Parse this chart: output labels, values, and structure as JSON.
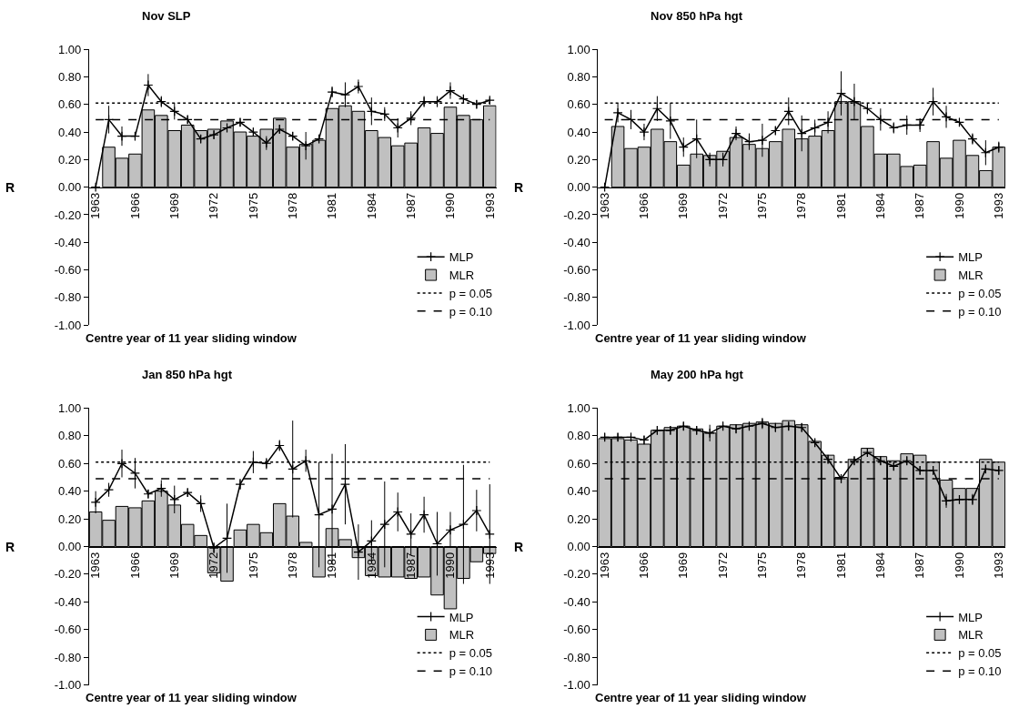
{
  "chart_data": [
    {
      "type": "bar",
      "title": "Nov SLP",
      "xlabel": "Centre year of 11 year sliding window",
      "ylabel": "R",
      "legend": "bottom right",
      "grid": false,
      "marker": "cross",
      "categories": [
        "1963",
        null,
        null,
        "1966",
        null,
        null,
        "1969",
        null,
        null,
        "1972",
        null,
        null,
        "1975",
        null,
        null,
        "1978",
        null,
        null,
        "1981",
        null,
        null,
        "1984",
        null,
        null,
        "1987",
        null,
        null,
        "1990",
        null,
        null,
        "1993"
      ],
      "series": [
        {
          "name": "MLP",
          "type": "line",
          "color": "#000000",
          "line_style": "solid",
          "values": [
            0,
            0.49,
            0.37,
            0.37,
            0.74,
            0.62,
            0.55,
            0.49,
            0.35,
            0.38,
            0.43,
            0.47,
            0.4,
            0.32,
            0.42,
            0.37,
            0.3,
            0.35,
            0.69,
            0.67,
            0.73,
            0.55,
            0.53,
            0.43,
            0.5,
            0.62,
            0.62,
            0.7,
            0.64,
            0.6,
            0.63
          ],
          "errors": [
            null,
            0.1,
            0.07,
            0.03,
            0.08,
            0.04,
            0.06,
            0.03,
            0.03,
            0.03,
            0.03,
            0.03,
            0.03,
            0.05,
            0.03,
            0.03,
            0.1,
            0.03,
            0.04,
            0.09,
            0.05,
            0.1,
            0.05,
            0.07,
            0.05,
            0.04,
            0.04,
            0.06,
            0.03,
            0.03,
            0.02
          ]
        },
        {
          "name": "MLR",
          "color": "#c0c0c0",
          "values": [
            null,
            0.29,
            0.21,
            0.24,
            0.56,
            0.52,
            0.41,
            0.45,
            0.41,
            0.42,
            0.48,
            0.4,
            0.37,
            0.42,
            0.5,
            0.29,
            0.31,
            0.34,
            0.57,
            0.59,
            0.55,
            0.41,
            0.36,
            0.3,
            0.32,
            0.43,
            0.39,
            0.58,
            0.52,
            0.49,
            0.59
          ]
        },
        {
          "name": "p = 0.05",
          "type": "line",
          "color": "#000000",
          "line_style": "dotted",
          "marker": "none",
          "values": [
            0.61,
            0.61,
            0.61,
            0.61,
            0.61,
            0.61,
            0.61,
            0.61,
            0.61,
            0.61,
            0.61,
            0.61,
            0.61,
            0.61,
            0.61,
            0.61,
            0.61,
            0.61,
            0.61,
            0.61,
            0.61,
            0.61,
            0.61,
            0.61,
            0.61,
            0.61,
            0.61,
            0.61,
            0.61,
            0.61,
            0.61
          ]
        },
        {
          "name": "p = 0.10",
          "type": "line",
          "color": "#000000",
          "line_style": "dashed",
          "marker": "none",
          "values": [
            0.49,
            0.49,
            0.49,
            0.49,
            0.49,
            0.49,
            0.49,
            0.49,
            0.49,
            0.49,
            0.49,
            0.49,
            0.49,
            0.49,
            0.49,
            0.49,
            0.49,
            0.49,
            0.49,
            0.49,
            0.49,
            0.49,
            0.49,
            0.49,
            0.49,
            0.49,
            0.49,
            0.49,
            0.49,
            0.49,
            0.49
          ]
        }
      ],
      "ylim": [
        -1,
        1
      ],
      "yticks": [
        {
          "value": -1,
          "label": "-1.00"
        },
        {
          "value": -0.8,
          "label": "-0.80"
        },
        {
          "value": -0.6,
          "label": "-0.60"
        },
        {
          "value": -0.4,
          "label": "-0.40"
        },
        {
          "value": -0.2,
          "label": "-0.20"
        },
        {
          "value": 0,
          "label": "0.00"
        },
        {
          "value": 0.2,
          "label": "0.20"
        },
        {
          "value": 0.4,
          "label": "0.40"
        },
        {
          "value": 0.6,
          "label": "0.60"
        },
        {
          "value": 0.8,
          "label": "0.80"
        },
        {
          "value": 1,
          "label": "1.00"
        }
      ]
    },
    {
      "type": "bar",
      "title": "Nov 850 hPa hgt",
      "xlabel": "Centre year of 11 year sliding window",
      "ylabel": "R",
      "legend": "bottom right",
      "grid": false,
      "marker": "cross",
      "categories": [
        "1963",
        null,
        null,
        "1966",
        null,
        null,
        "1969",
        null,
        null,
        "1972",
        null,
        null,
        "1975",
        null,
        null,
        "1978",
        null,
        null,
        "1981",
        null,
        null,
        "1984",
        null,
        null,
        "1987",
        null,
        null,
        "1990",
        null,
        null,
        "1993"
      ],
      "series": [
        {
          "name": "MLP",
          "type": "line",
          "color": "#000000",
          "line_style": "solid",
          "values": [
            0,
            0.54,
            0.49,
            0.4,
            0.57,
            0.48,
            0.29,
            0.35,
            0.2,
            0.2,
            0.39,
            0.33,
            0.34,
            0.41,
            0.55,
            0.39,
            0.43,
            0.47,
            0.68,
            0.62,
            0.57,
            0.49,
            0.43,
            0.45,
            0.45,
            0.62,
            0.51,
            0.47,
            0.35,
            0.25,
            0.29
          ],
          "errors": [
            null,
            0.07,
            0.07,
            0.06,
            0.09,
            0.13,
            0.07,
            0.14,
            0.05,
            0.05,
            0.05,
            0.06,
            0.12,
            0.03,
            0.1,
            0.13,
            0.06,
            0.08,
            0.16,
            0.13,
            0.04,
            0.08,
            0.04,
            0.07,
            0.05,
            0.1,
            0.08,
            0.03,
            0.04,
            0.09,
            0.04
          ]
        },
        {
          "name": "MLR",
          "color": "#c0c0c0",
          "values": [
            null,
            0.44,
            0.28,
            0.29,
            0.42,
            0.33,
            0.16,
            0.24,
            0.23,
            0.26,
            0.36,
            0.31,
            0.28,
            0.33,
            0.42,
            0.35,
            0.37,
            0.41,
            0.62,
            0.62,
            0.44,
            0.24,
            0.24,
            0.15,
            0.16,
            0.33,
            0.21,
            0.34,
            0.23,
            0.12,
            0.29
          ]
        },
        {
          "name": "p = 0.05",
          "type": "line",
          "color": "#000000",
          "line_style": "dotted",
          "marker": "none",
          "values": [
            0.61,
            0.61,
            0.61,
            0.61,
            0.61,
            0.61,
            0.61,
            0.61,
            0.61,
            0.61,
            0.61,
            0.61,
            0.61,
            0.61,
            0.61,
            0.61,
            0.61,
            0.61,
            0.61,
            0.61,
            0.61,
            0.61,
            0.61,
            0.61,
            0.61,
            0.61,
            0.61,
            0.61,
            0.61,
            0.61,
            0.61
          ]
        },
        {
          "name": "p = 0.10",
          "type": "line",
          "color": "#000000",
          "line_style": "dashed",
          "marker": "none",
          "values": [
            0.49,
            0.49,
            0.49,
            0.49,
            0.49,
            0.49,
            0.49,
            0.49,
            0.49,
            0.49,
            0.49,
            0.49,
            0.49,
            0.49,
            0.49,
            0.49,
            0.49,
            0.49,
            0.49,
            0.49,
            0.49,
            0.49,
            0.49,
            0.49,
            0.49,
            0.49,
            0.49,
            0.49,
            0.49,
            0.49,
            0.49
          ]
        }
      ],
      "ylim": [
        -1,
        1
      ],
      "yticks": [
        {
          "value": -1,
          "label": "-1.00"
        },
        {
          "value": -0.8,
          "label": "-0.80"
        },
        {
          "value": -0.6,
          "label": "-0.60"
        },
        {
          "value": -0.4,
          "label": "-0.40"
        },
        {
          "value": -0.2,
          "label": "-0.20"
        },
        {
          "value": 0,
          "label": "0.00"
        },
        {
          "value": 0.2,
          "label": "0.20"
        },
        {
          "value": 0.4,
          "label": "0.40"
        },
        {
          "value": 0.6,
          "label": "0.60"
        },
        {
          "value": 0.8,
          "label": "0.80"
        },
        {
          "value": 1,
          "label": "1.00"
        }
      ]
    },
    {
      "type": "bar",
      "title": "Jan 850 hPa hgt",
      "xlabel": "Centre year of 11 year sliding window",
      "ylabel": "R",
      "legend": "bottom right",
      "grid": false,
      "marker": "cross",
      "categories": [
        "1963",
        null,
        null,
        "1966",
        null,
        null,
        "1969",
        null,
        null,
        "1972",
        null,
        null,
        "1975",
        null,
        null,
        "1978",
        null,
        null,
        "1981",
        null,
        null,
        "1984",
        null,
        null,
        "1987",
        null,
        null,
        "1990",
        null,
        null,
        "1993"
      ],
      "series": [
        {
          "name": "MLP",
          "type": "line",
          "color": "#000000",
          "line_style": "solid",
          "values": [
            0.32,
            0.41,
            0.6,
            0.53,
            0.38,
            0.42,
            0.34,
            0.39,
            0.31,
            -0.01,
            0.06,
            0.45,
            0.61,
            0.6,
            0.73,
            0.56,
            0.62,
            0.23,
            0.27,
            0.45,
            -0.04,
            0.04,
            0.16,
            0.25,
            0.09,
            0.23,
            0.02,
            0.12,
            0.16,
            0.26,
            0.09
          ],
          "errors": [
            0.08,
            0.05,
            0.1,
            0.11,
            0.03,
            0.06,
            0.1,
            0.03,
            0.06,
            0.04,
            0.25,
            0.04,
            0.08,
            0.04,
            0.04,
            0.35,
            0.08,
            0.38,
            0.4,
            0.29,
            0.2,
            0.15,
            0.31,
            0.14,
            0.15,
            0.13,
            0.23,
            0.13,
            0.43,
            0.15,
            0.36
          ]
        },
        {
          "name": "MLR",
          "color": "#c0c0c0",
          "values": [
            0.25,
            0.19,
            0.29,
            0.28,
            0.33,
            0.4,
            0.3,
            0.16,
            0.08,
            -0.19,
            -0.25,
            0.12,
            0.16,
            0.1,
            0.31,
            0.22,
            0.03,
            -0.22,
            0.13,
            0.05,
            -0.08,
            -0.21,
            -0.22,
            -0.22,
            -0.23,
            -0.22,
            -0.35,
            -0.45,
            -0.23,
            -0.11,
            -0.05
          ]
        },
        {
          "name": "p = 0.05",
          "type": "line",
          "color": "#000000",
          "line_style": "dotted",
          "marker": "none",
          "values": [
            0.61,
            0.61,
            0.61,
            0.61,
            0.61,
            0.61,
            0.61,
            0.61,
            0.61,
            0.61,
            0.61,
            0.61,
            0.61,
            0.61,
            0.61,
            0.61,
            0.61,
            0.61,
            0.61,
            0.61,
            0.61,
            0.61,
            0.61,
            0.61,
            0.61,
            0.61,
            0.61,
            0.61,
            0.61,
            0.61,
            0.61
          ]
        },
        {
          "name": "p = 0.10",
          "type": "line",
          "color": "#000000",
          "line_style": "dashed",
          "marker": "none",
          "values": [
            0.49,
            0.49,
            0.49,
            0.49,
            0.49,
            0.49,
            0.49,
            0.49,
            0.49,
            0.49,
            0.49,
            0.49,
            0.49,
            0.49,
            0.49,
            0.49,
            0.49,
            0.49,
            0.49,
            0.49,
            0.49,
            0.49,
            0.49,
            0.49,
            0.49,
            0.49,
            0.49,
            0.49,
            0.49,
            0.49,
            0.49
          ]
        }
      ],
      "ylim": [
        -1,
        1
      ],
      "yticks": [
        {
          "value": -1,
          "label": "-1.00"
        },
        {
          "value": -0.8,
          "label": "-0.80"
        },
        {
          "value": -0.6,
          "label": "-0.60"
        },
        {
          "value": -0.4,
          "label": "-0.40"
        },
        {
          "value": -0.2,
          "label": "-0.20"
        },
        {
          "value": 0,
          "label": "0.00"
        },
        {
          "value": 0.2,
          "label": "0.20"
        },
        {
          "value": 0.4,
          "label": "0.40"
        },
        {
          "value": 0.6,
          "label": "0.60"
        },
        {
          "value": 0.8,
          "label": "0.80"
        },
        {
          "value": 1,
          "label": "1.00"
        }
      ]
    },
    {
      "type": "bar",
      "title": "May 200 hPa hgt",
      "xlabel": "Centre year of 11 year sliding window",
      "ylabel": "R",
      "legend": "bottom right",
      "grid": false,
      "marker": "cross",
      "categories": [
        "1963",
        null,
        null,
        "1966",
        null,
        null,
        "1969",
        null,
        null,
        "1972",
        null,
        null,
        "1975",
        null,
        null,
        "1978",
        null,
        null,
        "1981",
        null,
        null,
        "1984",
        null,
        null,
        "1987",
        null,
        null,
        "1990",
        null,
        null,
        "1993"
      ],
      "series": [
        {
          "name": "MLP",
          "type": "line",
          "color": "#000000",
          "line_style": "solid",
          "values": [
            0.79,
            0.79,
            0.79,
            0.77,
            0.84,
            0.84,
            0.87,
            0.84,
            0.82,
            0.87,
            0.85,
            0.87,
            0.89,
            0.86,
            0.87,
            0.86,
            0.75,
            0.63,
            0.49,
            0.62,
            0.68,
            0.62,
            0.58,
            0.62,
            0.55,
            0.55,
            0.33,
            0.34,
            0.34,
            0.56,
            0.55
          ],
          "errors": [
            0.03,
            0.03,
            0.03,
            0.03,
            0.03,
            0.03,
            0.03,
            0.03,
            0.06,
            0.03,
            0.03,
            0.03,
            0.04,
            0.03,
            0.03,
            0.03,
            0.03,
            0.03,
            0.03,
            0.03,
            0.03,
            0.03,
            0.03,
            0.03,
            0.03,
            0.03,
            0.05,
            0.03,
            0.04,
            0.03,
            0.03
          ]
        },
        {
          "name": "MLR",
          "color": "#c0c0c0",
          "values": [
            0.78,
            0.78,
            0.77,
            0.74,
            0.84,
            0.86,
            0.87,
            0.85,
            0.82,
            0.87,
            0.88,
            0.89,
            0.9,
            0.89,
            0.91,
            0.88,
            0.76,
            0.66,
            0.5,
            0.63,
            0.71,
            0.65,
            0.62,
            0.67,
            0.66,
            0.61,
            0.48,
            0.42,
            0.42,
            0.63,
            0.61
          ]
        },
        {
          "name": "p = 0.05",
          "type": "line",
          "color": "#000000",
          "line_style": "dotted",
          "marker": "none",
          "values": [
            0.61,
            0.61,
            0.61,
            0.61,
            0.61,
            0.61,
            0.61,
            0.61,
            0.61,
            0.61,
            0.61,
            0.61,
            0.61,
            0.61,
            0.61,
            0.61,
            0.61,
            0.61,
            0.61,
            0.61,
            0.61,
            0.61,
            0.61,
            0.61,
            0.61,
            0.61,
            0.61,
            0.61,
            0.61,
            0.61,
            0.61
          ]
        },
        {
          "name": "p = 0.10",
          "type": "line",
          "color": "#000000",
          "line_style": "dashed",
          "marker": "none",
          "values": [
            0.49,
            0.49,
            0.49,
            0.49,
            0.49,
            0.49,
            0.49,
            0.49,
            0.49,
            0.49,
            0.49,
            0.49,
            0.49,
            0.49,
            0.49,
            0.49,
            0.49,
            0.49,
            0.49,
            0.49,
            0.49,
            0.49,
            0.49,
            0.49,
            0.49,
            0.49,
            0.49,
            0.49,
            0.49,
            0.49,
            0.49
          ]
        }
      ],
      "ylim": [
        -1,
        1
      ],
      "yticks": [
        {
          "value": -1,
          "label": "-1.00"
        },
        {
          "value": -0.8,
          "label": "-0.80"
        },
        {
          "value": -0.6,
          "label": "-0.60"
        },
        {
          "value": -0.4,
          "label": "-0.40"
        },
        {
          "value": -0.2,
          "label": "-0.20"
        },
        {
          "value": 0,
          "label": "0.00"
        },
        {
          "value": 0.2,
          "label": "0.20"
        },
        {
          "value": 0.4,
          "label": "0.40"
        },
        {
          "value": 0.6,
          "label": "0.60"
        },
        {
          "value": 0.8,
          "label": "0.80"
        },
        {
          "value": 1,
          "label": "1.00"
        }
      ]
    }
  ]
}
